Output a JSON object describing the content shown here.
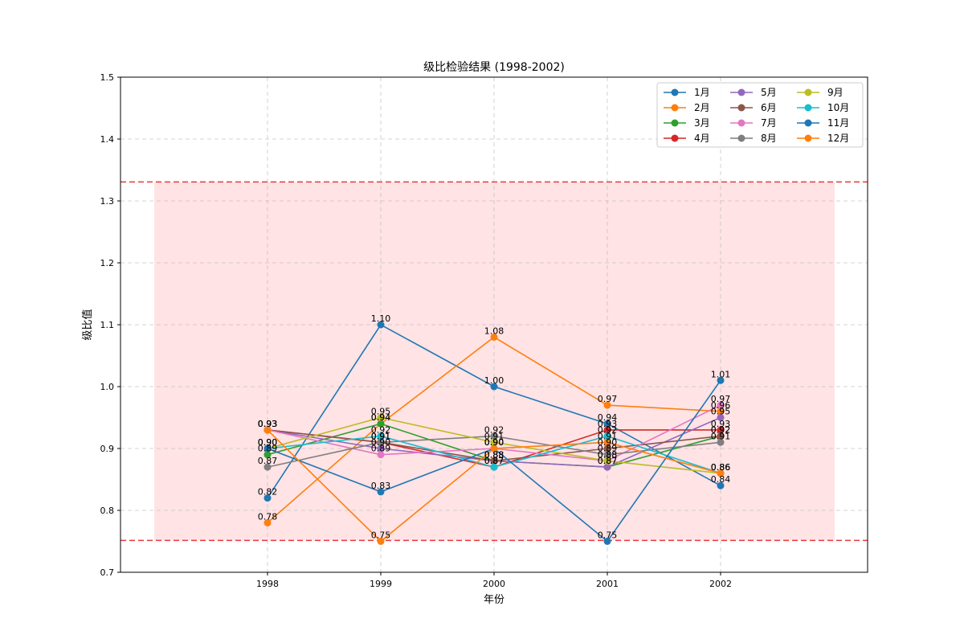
{
  "chart_data": {
    "type": "line",
    "title": "级比检验结果 (1998-2002)",
    "xlabel": "年份",
    "ylabel": "级比值",
    "categories": [
      "1998",
      "1999",
      "2000",
      "2001",
      "2002"
    ],
    "ylim": [
      0.7,
      1.5
    ],
    "yticks": [
      "0.7",
      "0.8",
      "0.9",
      "1.0",
      "1.1",
      "1.2",
      "1.3",
      "1.4",
      "1.5"
    ],
    "grid": true,
    "legend_position": "top-right",
    "legend_columns": 3,
    "acceptance_band": {
      "lower": 0.7515,
      "upper": 1.3307,
      "fill": "#ffc0c5",
      "line": "#e8383d"
    },
    "series": [
      {
        "name": "1月",
        "color": "#1f77b4",
        "values": [
          0.82,
          1.1,
          1.0,
          0.94,
          0.84
        ]
      },
      {
        "name": "2月",
        "color": "#ff7f0e",
        "values": [
          0.78,
          0.94,
          1.08,
          0.97,
          0.96
        ]
      },
      {
        "name": "3月",
        "color": "#2ca02c",
        "values": [
          0.89,
          0.94,
          0.88,
          0.87,
          0.92
        ]
      },
      {
        "name": "4月",
        "color": "#d62728",
        "values": [
          0.93,
          0.91,
          0.87,
          0.93,
          0.93
        ]
      },
      {
        "name": "5月",
        "color": "#9467bd",
        "values": [
          0.93,
          0.9,
          0.88,
          0.87,
          0.95
        ]
      },
      {
        "name": "6月",
        "color": "#8c564b",
        "values": [
          0.93,
          0.91,
          0.88,
          0.9,
          0.92
        ]
      },
      {
        "name": "7月",
        "color": "#e377c2",
        "values": [
          0.93,
          0.89,
          0.9,
          0.88,
          0.97
        ]
      },
      {
        "name": "8月",
        "color": "#7f7f7f",
        "values": [
          0.87,
          0.91,
          0.92,
          0.89,
          0.91
        ]
      },
      {
        "name": "9月",
        "color": "#bcbd22",
        "values": [
          0.9,
          0.95,
          0.91,
          0.88,
          0.86
        ]
      },
      {
        "name": "10月",
        "color": "#17becf",
        "values": [
          0.9,
          0.92,
          0.87,
          0.92,
          0.86
        ]
      },
      {
        "name": "11月",
        "color": "#1f77b4",
        "values": [
          0.9,
          0.83,
          0.9,
          0.75,
          1.01
        ]
      },
      {
        "name": "12月",
        "color": "#ff7f0e",
        "values": [
          0.93,
          0.75,
          0.9,
          0.91,
          0.86
        ]
      }
    ]
  }
}
